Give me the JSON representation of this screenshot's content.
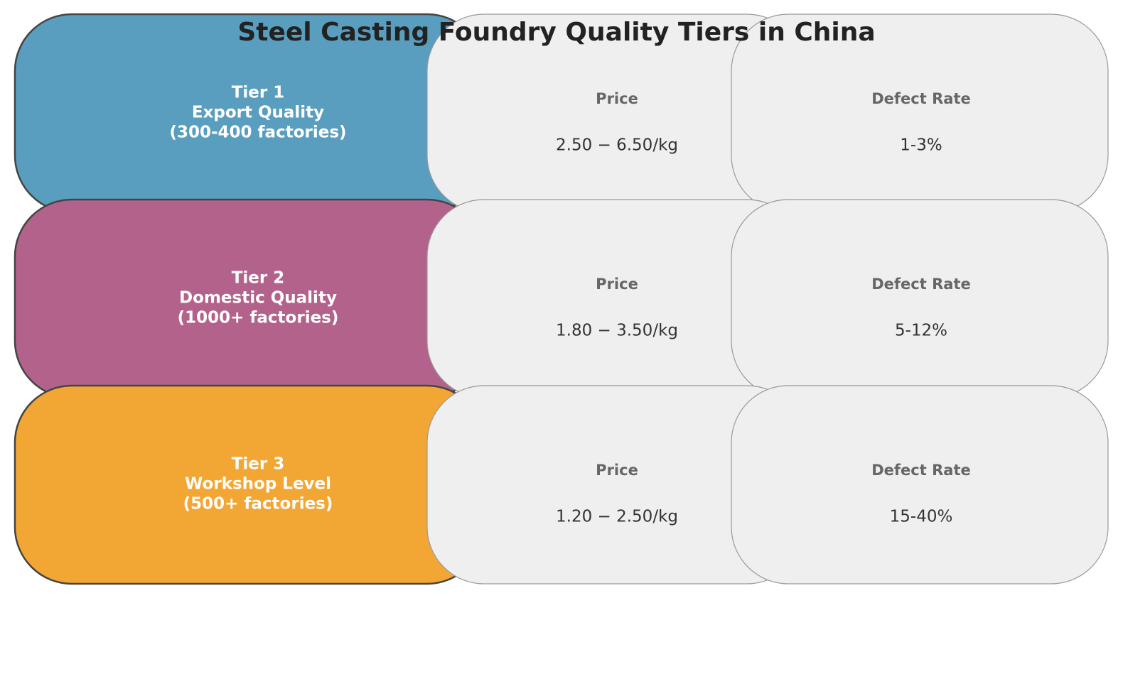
{
  "title": "Steel Casting Foundry Quality Tiers in China",
  "tiers": [
    {
      "name": "Tier 1",
      "quality": "Export Quality",
      "factories": "(300-400 factories)",
      "color": "#5a9ebf",
      "price_label": "Price",
      "price": "2.50 − 6.50/kg",
      "defect_label": "Defect Rate",
      "defect": "1-3%"
    },
    {
      "name": "Tier 2",
      "quality": "Domestic Quality",
      "factories": "(1000+ factories)",
      "color": "#b3638b",
      "price_label": "Price",
      "price": "1.80 − 3.50/kg",
      "defect_label": "Defect Rate",
      "defect": "5-12%"
    },
    {
      "name": "Tier 3",
      "quality": "Workshop Level",
      "factories": "(500+ factories)",
      "color": "#f2a633",
      "price_label": "Price",
      "price": "1.20 − 2.50/kg",
      "defect_label": "Defect Rate",
      "defect": "15-40%"
    }
  ]
}
